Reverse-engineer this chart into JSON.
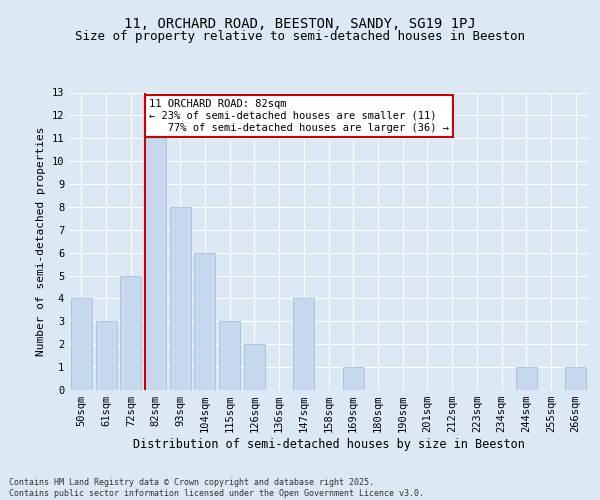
{
  "title1": "11, ORCHARD ROAD, BEESTON, SANDY, SG19 1PJ",
  "title2": "Size of property relative to semi-detached houses in Beeston",
  "xlabel": "Distribution of semi-detached houses by size in Beeston",
  "ylabel": "Number of semi-detached properties",
  "categories": [
    "50sqm",
    "61sqm",
    "72sqm",
    "82sqm",
    "93sqm",
    "104sqm",
    "115sqm",
    "126sqm",
    "136sqm",
    "147sqm",
    "158sqm",
    "169sqm",
    "180sqm",
    "190sqm",
    "201sqm",
    "212sqm",
    "223sqm",
    "234sqm",
    "244sqm",
    "255sqm",
    "266sqm"
  ],
  "values": [
    4,
    3,
    5,
    11,
    8,
    6,
    3,
    2,
    0,
    4,
    0,
    1,
    0,
    0,
    0,
    0,
    0,
    0,
    1,
    0,
    1
  ],
  "bar_color": "#c5d8ed",
  "bar_edge_color": "#a0b8d0",
  "vline_index": 3,
  "vline_color": "#cc0000",
  "annotation_text": "11 ORCHARD ROAD: 82sqm\n← 23% of semi-detached houses are smaller (11)\n   77% of semi-detached houses are larger (36) →",
  "annotation_box_color": "#ffffff",
  "annotation_box_edge": "#cc0000",
  "ylim": [
    0,
    13
  ],
  "yticks": [
    0,
    1,
    2,
    3,
    4,
    5,
    6,
    7,
    8,
    9,
    10,
    11,
    12,
    13
  ],
  "footnote": "Contains HM Land Registry data © Crown copyright and database right 2025.\nContains public sector information licensed under the Open Government Licence v3.0.",
  "bg_color": "#dce8f3",
  "grid_color": "#ffffff",
  "title1_fontsize": 10,
  "title2_fontsize": 9,
  "annot_fontsize": 7.5,
  "ylabel_fontsize": 8,
  "xlabel_fontsize": 8.5,
  "tick_fontsize": 7.5,
  "footnote_fontsize": 6.0
}
